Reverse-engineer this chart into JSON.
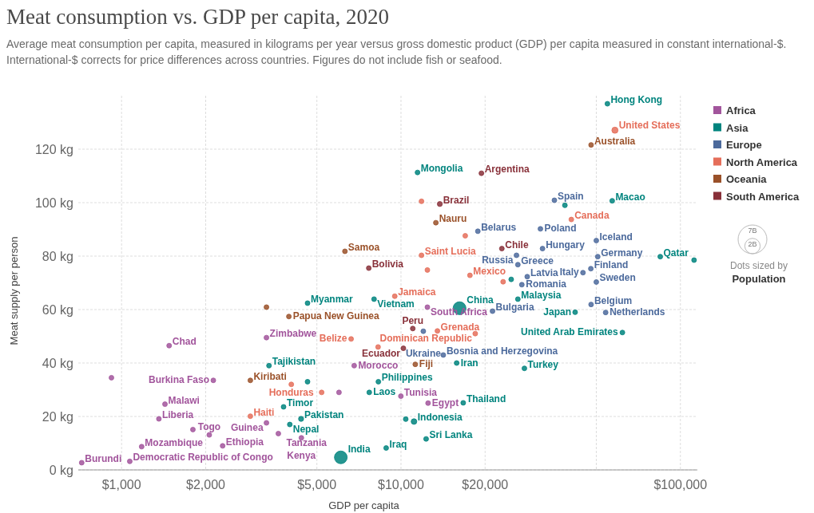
{
  "chart_data": {
    "type": "bubble",
    "title": "Meat consumption vs. GDP per capita, 2020",
    "subtitle": "Average meat consumption per capita, measured in kilograms per year versus gross domestic product (GDP) per capita measured in constant international-$. International-$ corrects for price differences across countries. Figures do not include fish or seafood.",
    "xlabel": "GDP per capita",
    "ylabel": "Meat supply per person",
    "log": "x",
    "grid": true,
    "legend": "top right",
    "marker": "circle",
    "xlim": [
      700,
      115000
    ],
    "xticks": [
      {
        "value": 1000,
        "label": "$1,000"
      },
      {
        "value": 2000,
        "label": "$2,000"
      },
      {
        "value": 5000,
        "label": "$5,000"
      },
      {
        "value": 10000,
        "label": "$10,000"
      },
      {
        "value": 20000,
        "label": "$20,000"
      },
      {
        "value": 50000,
        "label": null
      },
      {
        "value": 100000,
        "label": "$100,000"
      }
    ],
    "ylim": [
      0,
      140
    ],
    "yticks": [
      {
        "value": 0,
        "label": "0 kg"
      },
      {
        "value": 20,
        "label": "20 kg"
      },
      {
        "value": 40,
        "label": "40 kg"
      },
      {
        "value": 60,
        "label": "60 kg"
      },
      {
        "value": 80,
        "label": "80 kg"
      },
      {
        "value": 100,
        "label": "100 kg"
      },
      {
        "value": 120,
        "label": "120 kg"
      }
    ],
    "size_legend": [
      {
        "value": 7,
        "label": "7B"
      },
      {
        "value": 2,
        "label": "2B"
      }
    ],
    "series": [
      {
        "name": "Africa",
        "color": "#a2559c",
        "x": [
          1480,
          920,
          2130,
          1430,
          1360,
          1800,
          2060,
          1180,
          2300,
          720,
          1070,
          3300,
          3300,
          3640,
          4400,
          6800,
          6000,
          9990,
          12500,
          12430
        ],
        "values": [
          46.5,
          34.5,
          33.5,
          24.6,
          19.1,
          15.1,
          13.1,
          8.7,
          9,
          2.7,
          3.2,
          49.5,
          17.6,
          13.6,
          12,
          39,
          29,
          27.6,
          25,
          60.9
        ]
      },
      {
        "name": "Asia",
        "color": "#00847e",
        "x": [
          54800,
          11460,
          57000,
          38600,
          84700,
          111900,
          24800,
          26200,
          16200,
          4630,
          8010,
          42000,
          62000,
          15820,
          27650,
          3370,
          4630,
          8300,
          7700,
          16700,
          11130,
          10400,
          12300,
          8850,
          6090,
          3800,
          4390,
          4000
        ],
        "values": [
          137,
          111.3,
          100.7,
          99,
          79.8,
          78.5,
          71.3,
          63.9,
          60.5,
          62.4,
          63.9,
          59,
          51.4,
          40,
          38,
          39,
          33,
          33,
          29,
          25.1,
          18.1,
          19,
          11.6,
          8.2,
          4.7,
          23.6,
          19.1,
          17
        ],
        "sizes": [
          null,
          null,
          null,
          null,
          null,
          null,
          null,
          null,
          1.41,
          null,
          null,
          null,
          null,
          null,
          null,
          null,
          null,
          null,
          null,
          null,
          0.27,
          null,
          null,
          null,
          1.38,
          null,
          0.22,
          null
        ]
      },
      {
        "name": "Europe",
        "color": "#4c6a9c",
        "x": [
          35400,
          18840,
          31550,
          32100,
          25900,
          26200,
          28300,
          27070,
          50000,
          50600,
          44800,
          47800,
          50000,
          47900,
          54000,
          21260,
          12020,
          14170
        ],
        "values": [
          100.9,
          89.3,
          90.2,
          82.8,
          80.3,
          76.8,
          72.3,
          69.3,
          85.8,
          79.8,
          73.8,
          75.3,
          70.3,
          61.9,
          58.9,
          59.4,
          51.9,
          43
        ]
      },
      {
        "name": "North America",
        "color": "#e56e5a",
        "x": [
          58300,
          40700,
          11840,
          16980,
          11840,
          12430,
          17650,
          23200,
          9500,
          13500,
          18440,
          6630,
          8280,
          4050,
          5200,
          2890
        ],
        "values": [
          127.1,
          93.7,
          100.5,
          87.6,
          80.3,
          74.8,
          72.8,
          70.4,
          65,
          52,
          51,
          49,
          46,
          32,
          29,
          20.1
        ],
        "sizes": [
          0.33,
          null,
          null,
          null,
          null,
          null,
          null,
          null,
          null,
          null,
          null,
          null,
          null,
          null,
          null,
          null
        ]
      },
      {
        "name": "Oceania",
        "color": "#9a5129",
        "x": [
          47900,
          13330,
          6300,
          3300,
          3970,
          2890,
          11250
        ],
        "values": [
          121.6,
          92.5,
          81.8,
          60.9,
          57.4,
          33.5,
          39.5
        ]
      },
      {
        "name": "South America",
        "color": "#883039",
        "x": [
          19400,
          13770,
          22960,
          7670,
          11020,
          10200
        ],
        "values": [
          111,
          99.5,
          82.8,
          75.5,
          52.9,
          45.5
        ],
        "sizes": [
          null,
          0.213,
          null,
          null,
          null,
          null
        ]
      }
    ],
    "annotations": [
      {
        "text": "Democratic Republic of Congo",
        "x": 1070,
        "y": 3.2
      },
      {
        "text": "Burundi",
        "x": 720,
        "y": 2.7
      },
      {
        "text": "Ethiopia",
        "x": 2300,
        "y": 9
      },
      {
        "text": "Mozambique",
        "x": 1180,
        "y": 8.7
      },
      {
        "text": "Bosnia and Herzegovina",
        "x": 14170,
        "y": 43
      },
      {
        "text": "United Arab Emirates",
        "x": 62000,
        "y": 51.4
      },
      {
        "text": "Dominican Republic",
        "x": 18440,
        "y": 51
      },
      {
        "text": "Hong Kong",
        "x": 54800,
        "y": 137
      },
      {
        "text": "United States",
        "x": 58300,
        "y": 127.1
      },
      {
        "text": "Australia",
        "x": 47900,
        "y": 121.6
      },
      {
        "text": "Mongolia",
        "x": 11460,
        "y": 111.3
      },
      {
        "text": "Argentina",
        "x": 19400,
        "y": 111
      },
      {
        "text": "Brazil",
        "x": 13770,
        "y": 99.5
      },
      {
        "text": "Spain",
        "x": 35400,
        "y": 100.9
      },
      {
        "text": "Macao",
        "x": 57000,
        "y": 100.7
      },
      {
        "text": "Nauru",
        "x": 13330,
        "y": 92.5
      },
      {
        "text": "Belarus",
        "x": 18840,
        "y": 89.3
      },
      {
        "text": "Poland",
        "x": 31550,
        "y": 90.2
      },
      {
        "text": "Canada",
        "x": 40700,
        "y": 93.7
      },
      {
        "text": "Iceland",
        "x": 50000,
        "y": 85.8
      },
      {
        "text": "Samoa",
        "x": 6300,
        "y": 81.8
      },
      {
        "text": "Saint Lucia",
        "x": 11840,
        "y": 80.3
      },
      {
        "text": "Chile",
        "x": 22960,
        "y": 82.8
      },
      {
        "text": "Hungary",
        "x": 32100,
        "y": 82.8
      },
      {
        "text": "Germany",
        "x": 50600,
        "y": 79.8
      },
      {
        "text": "Qatar",
        "x": 84700,
        "y": 79.8
      },
      {
        "text": "Bolivia",
        "x": 7670,
        "y": 75.5
      },
      {
        "text": "Russia",
        "x": 25900,
        "y": 80.3
      },
      {
        "text": "Mexico",
        "x": 17650,
        "y": 72.8
      },
      {
        "text": "Greece",
        "x": 26200,
        "y": 76.8
      },
      {
        "text": "Latvia",
        "x": 28300,
        "y": 72.3
      },
      {
        "text": "Italy",
        "x": 44800,
        "y": 73.8
      },
      {
        "text": "Finland",
        "x": 47800,
        "y": 75.3
      },
      {
        "text": "Romania",
        "x": 27070,
        "y": 69.3
      },
      {
        "text": "Sweden",
        "x": 50000,
        "y": 70.3
      },
      {
        "text": "Myanmar",
        "x": 4630,
        "y": 62.4
      },
      {
        "text": "Jamaica",
        "x": 9500,
        "y": 65
      },
      {
        "text": "Vietnam",
        "x": 8010,
        "y": 63.9
      },
      {
        "text": "China",
        "x": 16200,
        "y": 60.5
      },
      {
        "text": "Malaysia",
        "x": 26200,
        "y": 63.9
      },
      {
        "text": "Belgium",
        "x": 47900,
        "y": 61.9
      },
      {
        "text": "Papua New Guinea",
        "x": 3970,
        "y": 57.4
      },
      {
        "text": "South Africa",
        "x": 12430,
        "y": 60.9
      },
      {
        "text": "Bulgaria",
        "x": 21260,
        "y": 59.4
      },
      {
        "text": "Netherlands",
        "x": 54000,
        "y": 58.9
      },
      {
        "text": "Japan",
        "x": 42000,
        "y": 59
      },
      {
        "text": "Zimbabwe",
        "x": 3300,
        "y": 49.5
      },
      {
        "text": "Belize",
        "x": 6630,
        "y": 49
      },
      {
        "text": "Peru",
        "x": 11020,
        "y": 52.9
      },
      {
        "text": "Grenada",
        "x": 13500,
        "y": 52
      },
      {
        "text": "Ukraine",
        "x": 12020,
        "y": 51.9
      },
      {
        "text": "Chad",
        "x": 1480,
        "y": 46.5
      },
      {
        "text": "Ecuador",
        "x": 10200,
        "y": 45.5
      },
      {
        "text": "Kiribati",
        "x": 2890,
        "y": 33.5
      },
      {
        "text": "Tajikistan",
        "x": 3370,
        "y": 39
      },
      {
        "text": "Morocco",
        "x": 6800,
        "y": 39
      },
      {
        "text": "Fiji",
        "x": 11250,
        "y": 39.5
      },
      {
        "text": "Iran",
        "x": 15820,
        "y": 40
      },
      {
        "text": "Turkey",
        "x": 27650,
        "y": 38
      },
      {
        "text": "Burkina Faso",
        "x": 2130,
        "y": 33.5
      },
      {
        "text": "Honduras",
        "x": 4050,
        "y": 32
      },
      {
        "text": "Philippines",
        "x": 8300,
        "y": 33
      },
      {
        "text": "Laos",
        "x": 7700,
        "y": 29
      },
      {
        "text": "Tunisia",
        "x": 9990,
        "y": 27.6
      },
      {
        "text": "Egypt",
        "x": 12500,
        "y": 25
      },
      {
        "text": "Thailand",
        "x": 16700,
        "y": 25.1
      },
      {
        "text": "Malawi",
        "x": 1430,
        "y": 24.6
      },
      {
        "text": "Timor",
        "x": 3800,
        "y": 23.6
      },
      {
        "text": "Liberia",
        "x": 1360,
        "y": 19.1
      },
      {
        "text": "Haiti",
        "x": 2890,
        "y": 20.1
      },
      {
        "text": "Pakistan",
        "x": 4390,
        "y": 19.1
      },
      {
        "text": "Indonesia",
        "x": 11130,
        "y": 18.1
      },
      {
        "text": "Guinea",
        "x": 3300,
        "y": 17.6
      },
      {
        "text": "Nepal",
        "x": 4000,
        "y": 17
      },
      {
        "text": "Togo",
        "x": 2060,
        "y": 13.1
      },
      {
        "text": "Tanzania",
        "x": 3640,
        "y": 13.6
      },
      {
        "text": "Kenya",
        "x": 4400,
        "y": 12
      },
      {
        "text": "Sri Lanka",
        "x": 12300,
        "y": 11.6
      },
      {
        "text": "Iraq",
        "x": 8850,
        "y": 8.2
      },
      {
        "text": "India",
        "x": 6090,
        "y": 4.7
      },
      "Dots sized by Population"
    ]
  }
}
